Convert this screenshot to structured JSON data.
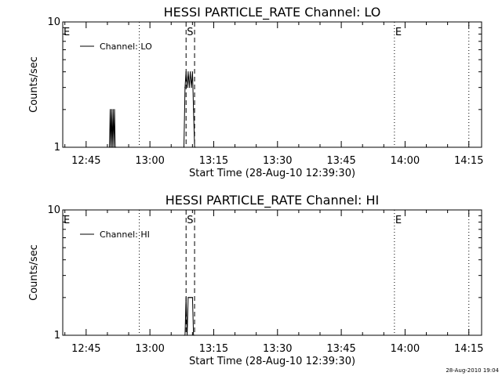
{
  "chart_data": [
    {
      "type": "line",
      "title": "HESSI PARTICLE_RATE Channel: LO",
      "xlabel": "Start Time (28-Aug-10 12:39:30)",
      "ylabel": "Counts/sec",
      "yscale": "log",
      "ylim": [
        1,
        10
      ],
      "y_tick_labels": [
        "1",
        "10"
      ],
      "xlim": [
        "12:39:30",
        "14:18:00"
      ],
      "x_tick_labels": [
        "12:45",
        "13:00",
        "13:15",
        "13:30",
        "13:45",
        "14:00",
        "14:15"
      ],
      "legend": {
        "placement": "top-left",
        "entries": [
          "Channel: LO"
        ]
      },
      "grid": false,
      "event_markers": [
        {
          "label": "E",
          "time": "12:39:30",
          "style": "dotted"
        },
        {
          "label": "",
          "time": "12:57:30",
          "style": "dotted"
        },
        {
          "label": "S",
          "time": "13:08:30",
          "style": "dashed"
        },
        {
          "label": "",
          "time": "13:10:30",
          "style": "dashed"
        },
        {
          "label": "E",
          "time": "13:57:30",
          "style": "dotted"
        },
        {
          "label": "",
          "time": "14:15:00",
          "style": "dotted"
        }
      ],
      "series": [
        {
          "name": "Channel: LO",
          "x": [
            "12:50:30",
            "12:50:40",
            "12:50:50",
            "12:51:00",
            "12:51:10",
            "12:51:20",
            "12:51:30",
            "12:51:40",
            "12:51:50",
            "12:52:00",
            "13:08:00",
            "13:08:15",
            "13:08:30",
            "13:08:45",
            "13:09:00",
            "13:09:15",
            "13:09:30",
            "13:09:45",
            "13:10:00",
            "13:10:15",
            "13:10:30",
            "13:10:45"
          ],
          "y": [
            1,
            2,
            1,
            2,
            1,
            2,
            1,
            2,
            1,
            1,
            1,
            3,
            4,
            3,
            4,
            3,
            4,
            3,
            4,
            2,
            1,
            1
          ]
        }
      ]
    },
    {
      "type": "line",
      "title": "HESSI PARTICLE_RATE Channel: HI",
      "xlabel": "Start Time (28-Aug-10 12:39:30)",
      "ylabel": "Counts/sec",
      "yscale": "log",
      "ylim": [
        1,
        10
      ],
      "y_tick_labels": [
        "1",
        "10"
      ],
      "xlim": [
        "12:39:30",
        "14:18:00"
      ],
      "x_tick_labels": [
        "12:45",
        "13:00",
        "13:15",
        "13:30",
        "13:45",
        "14:00",
        "14:15"
      ],
      "legend": {
        "placement": "top-left",
        "entries": [
          "Channel: HI"
        ]
      },
      "grid": false,
      "event_markers": [
        {
          "label": "E",
          "time": "12:39:30",
          "style": "dotted"
        },
        {
          "label": "",
          "time": "12:57:30",
          "style": "dotted"
        },
        {
          "label": "S",
          "time": "13:08:30",
          "style": "dashed"
        },
        {
          "label": "",
          "time": "13:10:30",
          "style": "dashed"
        },
        {
          "label": "E",
          "time": "13:57:30",
          "style": "dotted"
        },
        {
          "label": "",
          "time": "14:15:00",
          "style": "dotted"
        }
      ],
      "series": [
        {
          "name": "Channel: HI",
          "x": [
            "13:08:00",
            "13:08:15",
            "13:08:30",
            "13:08:45",
            "13:09:00",
            "13:09:15",
            "13:09:30",
            "13:09:45",
            "13:10:00",
            "13:10:15",
            "13:10:30"
          ],
          "y": [
            1,
            1,
            2,
            1,
            2,
            2,
            2,
            2,
            2,
            1,
            1
          ]
        }
      ]
    }
  ],
  "footer": {
    "timestamp": "28-Aug-2010 19:04"
  }
}
